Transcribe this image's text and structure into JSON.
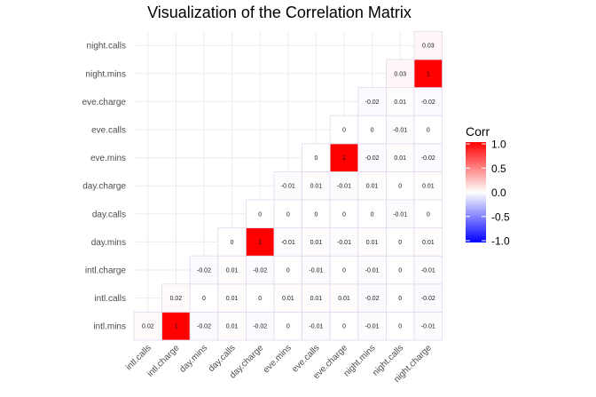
{
  "chart_data": {
    "type": "heatmap",
    "title": "Visualization of the Correlation Matrix",
    "variables": [
      "intl.mins",
      "intl.calls",
      "intl.charge",
      "day.mins",
      "day.calls",
      "day.charge",
      "eve.mins",
      "eve.calls",
      "eve.charge",
      "night.mins",
      "night.calls",
      "night.charge"
    ],
    "x_labels": [
      "intl.calls",
      "intl.charge",
      "day.mins",
      "day.calls",
      "day.charge",
      "eve.mins",
      "eve.calls",
      "eve.charge",
      "night.mins",
      "night.calls",
      "night.charge"
    ],
    "y_labels": [
      "intl.mins",
      "intl.calls",
      "intl.charge",
      "day.mins",
      "day.calls",
      "day.charge",
      "eve.mins",
      "eve.calls",
      "eve.charge",
      "night.mins",
      "night.calls"
    ],
    "cells": [
      {
        "x": "intl.calls",
        "y": "intl.mins",
        "value": 0.02
      },
      {
        "x": "intl.charge",
        "y": "intl.mins",
        "value": 1
      },
      {
        "x": "intl.charge",
        "y": "intl.calls",
        "value": 0.02
      },
      {
        "x": "day.mins",
        "y": "intl.mins",
        "value": -0.02
      },
      {
        "x": "day.mins",
        "y": "intl.calls",
        "value": 0
      },
      {
        "x": "day.mins",
        "y": "intl.charge",
        "value": -0.02
      },
      {
        "x": "day.calls",
        "y": "intl.mins",
        "value": 0.01
      },
      {
        "x": "day.calls",
        "y": "intl.calls",
        "value": 0.01
      },
      {
        "x": "day.calls",
        "y": "intl.charge",
        "value": 0.01
      },
      {
        "x": "day.calls",
        "y": "day.mins",
        "value": 0
      },
      {
        "x": "day.charge",
        "y": "intl.mins",
        "value": -0.02
      },
      {
        "x": "day.charge",
        "y": "intl.calls",
        "value": 0
      },
      {
        "x": "day.charge",
        "y": "intl.charge",
        "value": -0.02
      },
      {
        "x": "day.charge",
        "y": "day.mins",
        "value": 1
      },
      {
        "x": "day.charge",
        "y": "day.calls",
        "value": 0
      },
      {
        "x": "eve.mins",
        "y": "intl.mins",
        "value": 0
      },
      {
        "x": "eve.mins",
        "y": "intl.calls",
        "value": 0.01
      },
      {
        "x": "eve.mins",
        "y": "intl.charge",
        "value": 0
      },
      {
        "x": "eve.mins",
        "y": "day.mins",
        "value": -0.01
      },
      {
        "x": "eve.mins",
        "y": "day.calls",
        "value": 0
      },
      {
        "x": "eve.mins",
        "y": "day.charge",
        "value": -0.01
      },
      {
        "x": "eve.calls",
        "y": "intl.mins",
        "value": -0.01
      },
      {
        "x": "eve.calls",
        "y": "intl.calls",
        "value": 0.01
      },
      {
        "x": "eve.calls",
        "y": "intl.charge",
        "value": -0.01
      },
      {
        "x": "eve.calls",
        "y": "day.mins",
        "value": 0.01
      },
      {
        "x": "eve.calls",
        "y": "day.calls",
        "value": 0
      },
      {
        "x": "eve.calls",
        "y": "day.charge",
        "value": 0.01
      },
      {
        "x": "eve.calls",
        "y": "eve.mins",
        "value": 0
      },
      {
        "x": "eve.charge",
        "y": "intl.mins",
        "value": 0
      },
      {
        "x": "eve.charge",
        "y": "intl.calls",
        "value": 0.01
      },
      {
        "x": "eve.charge",
        "y": "intl.charge",
        "value": 0
      },
      {
        "x": "eve.charge",
        "y": "day.mins",
        "value": -0.01
      },
      {
        "x": "eve.charge",
        "y": "day.calls",
        "value": 0
      },
      {
        "x": "eve.charge",
        "y": "day.charge",
        "value": -0.01
      },
      {
        "x": "eve.charge",
        "y": "eve.mins",
        "value": 1
      },
      {
        "x": "eve.charge",
        "y": "eve.calls",
        "value": 0
      },
      {
        "x": "night.mins",
        "y": "intl.mins",
        "value": -0.01
      },
      {
        "x": "night.mins",
        "y": "intl.calls",
        "value": -0.02
      },
      {
        "x": "night.mins",
        "y": "intl.charge",
        "value": -0.01
      },
      {
        "x": "night.mins",
        "y": "day.mins",
        "value": 0.01
      },
      {
        "x": "night.mins",
        "y": "day.calls",
        "value": 0
      },
      {
        "x": "night.mins",
        "y": "day.charge",
        "value": 0.01
      },
      {
        "x": "night.mins",
        "y": "eve.mins",
        "value": -0.02
      },
      {
        "x": "night.mins",
        "y": "eve.calls",
        "value": 0
      },
      {
        "x": "night.mins",
        "y": "eve.charge",
        "value": -0.02
      },
      {
        "x": "night.calls",
        "y": "intl.mins",
        "value": 0
      },
      {
        "x": "night.calls",
        "y": "intl.calls",
        "value": 0
      },
      {
        "x": "night.calls",
        "y": "intl.charge",
        "value": 0
      },
      {
        "x": "night.calls",
        "y": "day.mins",
        "value": 0
      },
      {
        "x": "night.calls",
        "y": "day.calls",
        "value": -0.01
      },
      {
        "x": "night.calls",
        "y": "day.charge",
        "value": 0
      },
      {
        "x": "night.calls",
        "y": "eve.mins",
        "value": 0.01
      },
      {
        "x": "night.calls",
        "y": "eve.calls",
        "value": -0.01
      },
      {
        "x": "night.calls",
        "y": "eve.charge",
        "value": 0.01
      },
      {
        "x": "night.calls",
        "y": "night.mins",
        "value": 0.03
      },
      {
        "x": "night.charge",
        "y": "intl.mins",
        "value": -0.01
      },
      {
        "x": "night.charge",
        "y": "intl.calls",
        "value": -0.02
      },
      {
        "x": "night.charge",
        "y": "intl.charge",
        "value": -0.01
      },
      {
        "x": "night.charge",
        "y": "day.mins",
        "value": 0.01
      },
      {
        "x": "night.charge",
        "y": "day.calls",
        "value": 0
      },
      {
        "x": "night.charge",
        "y": "day.charge",
        "value": 0.01
      },
      {
        "x": "night.charge",
        "y": "eve.mins",
        "value": -0.02
      },
      {
        "x": "night.charge",
        "y": "eve.calls",
        "value": 0
      },
      {
        "x": "night.charge",
        "y": "eve.charge",
        "value": -0.02
      },
      {
        "x": "night.charge",
        "y": "night.mins",
        "value": 1
      },
      {
        "x": "night.charge",
        "y": "night.calls",
        "value": 0.03
      }
    ],
    "legend": {
      "title": "Corr",
      "ticks": [
        "1.0",
        "0.5",
        "0.0",
        "-0.5",
        "-1.0"
      ],
      "range": [
        -1,
        1
      ],
      "colors": {
        "low": "#0000ff",
        "mid": "#ffffff",
        "high": "#ff0000"
      },
      "placement": "right"
    },
    "grid": true,
    "cell_border_color": "#e3d8ee"
  }
}
